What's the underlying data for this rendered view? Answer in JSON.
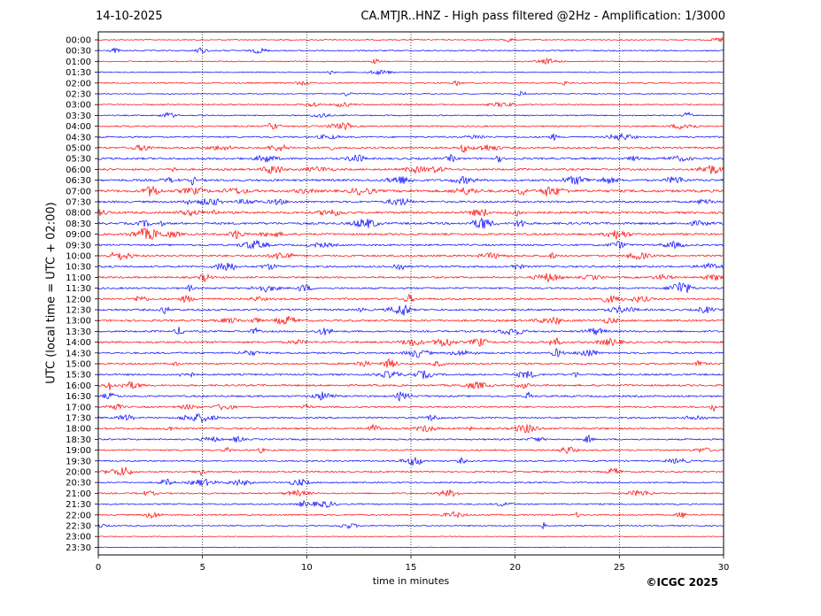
{
  "header": {
    "date": "14-10-2025",
    "title": "CA.MTJR..HNZ - High pass filtered @2Hz - Amplification: 1/3000"
  },
  "footer": {
    "copyright": "©ICGC 2025"
  },
  "colors": {
    "trace_red": "#ff0000",
    "trace_blue": "#0000ff",
    "axes": "#000000",
    "grid": "#000000"
  },
  "chart_data": {
    "type": "line",
    "title": "CA.MTJR..HNZ - High pass filtered @2Hz - Amplification: 1/3000",
    "xlabel": "time in minutes",
    "ylabel": "UTC (local time = UTC + 02:00)",
    "xlim": [
      0,
      30
    ],
    "x_ticks": [
      0,
      5,
      10,
      15,
      20,
      25,
      30
    ],
    "grid": "vertical dotted lines at x = 5, 10, 15, 20, 25",
    "row_color_pattern": "rows alternate red (:00) and blue (:30)",
    "rows": [
      "00:00",
      "00:30",
      "01:00",
      "01:30",
      "02:00",
      "02:30",
      "03:00",
      "03:30",
      "04:00",
      "04:30",
      "05:00",
      "05:30",
      "06:00",
      "06:30",
      "07:00",
      "07:30",
      "08:00",
      "08:30",
      "09:00",
      "09:30",
      "10:00",
      "10:30",
      "11:00",
      "11:30",
      "12:00",
      "12:30",
      "13:00",
      "13:30",
      "14:00",
      "14:30",
      "15:00",
      "15:30",
      "16:00",
      "16:30",
      "17:00",
      "17:30",
      "18:00",
      "18:30",
      "19:00",
      "19:30",
      "20:00",
      "20:30",
      "21:00",
      "21:30",
      "22:00",
      "22:30",
      "23:00",
      "23:30"
    ],
    "activity_level": [
      0.15,
      0.25,
      0.2,
      0.15,
      0.25,
      0.15,
      0.3,
      0.25,
      0.35,
      0.4,
      0.55,
      0.6,
      0.6,
      0.65,
      0.85,
      0.6,
      0.7,
      0.7,
      0.6,
      0.5,
      0.55,
      0.55,
      0.5,
      0.5,
      0.6,
      0.6,
      0.6,
      0.5,
      0.6,
      0.5,
      0.5,
      0.5,
      0.55,
      0.5,
      0.45,
      0.45,
      0.5,
      0.4,
      0.4,
      0.35,
      0.4,
      0.35,
      0.35,
      0.35,
      0.35,
      0.25,
      0.0,
      0.0
    ],
    "trace_end_minutes": [
      30,
      30,
      30,
      30,
      30,
      30,
      30,
      30,
      30,
      30,
      30,
      30,
      30,
      30,
      30,
      30,
      30,
      30,
      30,
      30,
      30,
      30,
      30,
      30,
      30,
      30,
      30,
      30,
      30,
      30,
      30,
      30,
      30,
      30,
      30,
      30,
      30,
      30,
      30,
      30,
      30,
      30,
      30,
      30,
      30,
      30,
      30,
      30
    ]
  }
}
